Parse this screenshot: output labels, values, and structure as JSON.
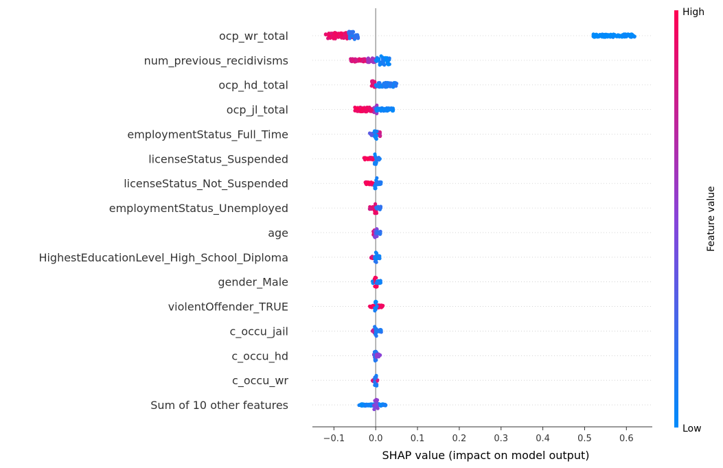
{
  "chart_data": {
    "type": "scatter",
    "subtype": "shap-beeswarm",
    "title": "",
    "xlabel": "SHAP value (impact on model output)",
    "xlim": [
      -0.15,
      0.65
    ],
    "xticks": [
      -0.1,
      0.0,
      0.1,
      0.2,
      0.3,
      0.4,
      0.5,
      0.6
    ],
    "xtick_labels": [
      "−0.1",
      "0.0",
      "0.1",
      "0.2",
      "0.3",
      "0.4",
      "0.5",
      "0.6"
    ],
    "zero_line": true,
    "colors": {
      "low": "#008bfb",
      "high": "#ff0052",
      "zero_line": "#999999"
    },
    "colorbar": {
      "label": "Feature value",
      "high_label": "High",
      "low_label": "Low"
    },
    "features": [
      {
        "name": "ocp_wr_total",
        "clusters": [
          {
            "x_min": -0.12,
            "x_max": -0.055,
            "color": 0.9,
            "spread": 0.25
          },
          {
            "x_min": -0.065,
            "x_max": -0.042,
            "color": 0.15,
            "spread": 0.35
          },
          {
            "x_min": 0.52,
            "x_max": 0.62,
            "color": 0.0,
            "spread": 0.12
          }
        ]
      },
      {
        "name": "num_previous_recidivisms",
        "clusters": [
          {
            "x_min": -0.06,
            "x_max": -0.02,
            "color": 0.85,
            "spread": 0.12
          },
          {
            "x_min": -0.02,
            "x_max": 0.0,
            "color": 0.6,
            "spread": 0.18
          },
          {
            "x_min": 0.0,
            "x_max": 0.035,
            "color": 0.05,
            "spread": 0.4
          }
        ]
      },
      {
        "name": "ocp_hd_total",
        "clusters": [
          {
            "x_min": -0.01,
            "x_max": 0.0,
            "color": 0.85,
            "spread": 0.35
          },
          {
            "x_min": 0.0,
            "x_max": 0.05,
            "color": 0.1,
            "spread": 0.18
          }
        ]
      },
      {
        "name": "ocp_jl_total",
        "clusters": [
          {
            "x_min": -0.05,
            "x_max": 0.0,
            "color": 0.95,
            "spread": 0.18
          },
          {
            "x_min": -0.005,
            "x_max": 0.005,
            "color": 0.6,
            "spread": 0.35
          },
          {
            "x_min": 0.0,
            "x_max": 0.043,
            "color": 0.05,
            "spread": 0.12
          }
        ]
      },
      {
        "name": "employmentStatus_Full_Time",
        "clusters": [
          {
            "x_min": -0.015,
            "x_max": -0.002,
            "color": 0.3,
            "spread": 0.1
          },
          {
            "x_min": -0.002,
            "x_max": 0.012,
            "color": 0.8,
            "spread": 0.2
          },
          {
            "x_min": -0.003,
            "x_max": 0.003,
            "color": 0.05,
            "spread": 0.4
          }
        ]
      },
      {
        "name": "licenseStatus_Suspended",
        "clusters": [
          {
            "x_min": -0.028,
            "x_max": -0.003,
            "color": 0.95,
            "spread": 0.1
          },
          {
            "x_min": -0.003,
            "x_max": 0.003,
            "color": 0.05,
            "spread": 0.45
          },
          {
            "x_min": 0.0,
            "x_max": 0.01,
            "color": 0.1,
            "spread": 0.1
          }
        ]
      },
      {
        "name": "licenseStatus_Not_Suspended",
        "clusters": [
          {
            "x_min": -0.025,
            "x_max": -0.003,
            "color": 0.95,
            "spread": 0.1
          },
          {
            "x_min": -0.003,
            "x_max": 0.003,
            "color": 0.05,
            "spread": 0.45
          },
          {
            "x_min": 0.0,
            "x_max": 0.013,
            "color": 0.1,
            "spread": 0.12
          }
        ]
      },
      {
        "name": "employmentStatus_Unemployed",
        "clusters": [
          {
            "x_min": -0.015,
            "x_max": -0.002,
            "color": 0.85,
            "spread": 0.1
          },
          {
            "x_min": -0.003,
            "x_max": 0.003,
            "color": 0.9,
            "spread": 0.45
          },
          {
            "x_min": 0.0,
            "x_max": 0.012,
            "color": 0.15,
            "spread": 0.15
          }
        ]
      },
      {
        "name": "age",
        "clusters": [
          {
            "x_min": -0.008,
            "x_max": 0.0,
            "color": 0.85,
            "spread": 0.2
          },
          {
            "x_min": -0.004,
            "x_max": 0.004,
            "color": 0.5,
            "spread": 0.4
          },
          {
            "x_min": 0.0,
            "x_max": 0.012,
            "color": 0.2,
            "spread": 0.15
          }
        ]
      },
      {
        "name": "HighestEducationLevel_High_School_Diploma",
        "clusters": [
          {
            "x_min": -0.012,
            "x_max": -0.002,
            "color": 0.85,
            "spread": 0.1
          },
          {
            "x_min": -0.003,
            "x_max": 0.003,
            "color": 0.1,
            "spread": 0.45
          },
          {
            "x_min": 0.0,
            "x_max": 0.01,
            "color": 0.05,
            "spread": 0.12
          }
        ]
      },
      {
        "name": "gender_Male",
        "clusters": [
          {
            "x_min": -0.008,
            "x_max": 0.0,
            "color": 0.05,
            "spread": 0.12
          },
          {
            "x_min": -0.003,
            "x_max": 0.003,
            "color": 0.95,
            "spread": 0.45
          },
          {
            "x_min": 0.0,
            "x_max": 0.012,
            "color": 0.05,
            "spread": 0.12
          }
        ]
      },
      {
        "name": "violentOffender_TRUE",
        "clusters": [
          {
            "x_min": -0.015,
            "x_max": 0.018,
            "color": 0.95,
            "spread": 0.1
          },
          {
            "x_min": -0.003,
            "x_max": 0.003,
            "color": 0.05,
            "spread": 0.45
          }
        ]
      },
      {
        "name": "c_occu_jail",
        "clusters": [
          {
            "x_min": -0.008,
            "x_max": 0.0,
            "color": 0.75,
            "spread": 0.15
          },
          {
            "x_min": -0.003,
            "x_max": 0.003,
            "color": 0.1,
            "spread": 0.45
          },
          {
            "x_min": 0.0,
            "x_max": 0.014,
            "color": 0.15,
            "spread": 0.12
          }
        ]
      },
      {
        "name": "c_occu_hd",
        "clusters": [
          {
            "x_min": -0.005,
            "x_max": 0.0,
            "color": 0.5,
            "spread": 0.15
          },
          {
            "x_min": -0.003,
            "x_max": 0.003,
            "color": 0.1,
            "spread": 0.45
          },
          {
            "x_min": 0.0,
            "x_max": 0.012,
            "color": 0.55,
            "spread": 0.12
          }
        ]
      },
      {
        "name": "c_occu_wr",
        "clusters": [
          {
            "x_min": -0.008,
            "x_max": 0.005,
            "color": 0.85,
            "spread": 0.1
          },
          {
            "x_min": -0.003,
            "x_max": 0.003,
            "color": 0.1,
            "spread": 0.45
          }
        ]
      },
      {
        "name": "Sum of 10 other features",
        "clusters": [
          {
            "x_min": -0.04,
            "x_max": 0.025,
            "color": 0.05,
            "spread": 0.08
          },
          {
            "x_min": -0.005,
            "x_max": 0.005,
            "color": 0.5,
            "spread": 0.45
          }
        ]
      }
    ]
  }
}
